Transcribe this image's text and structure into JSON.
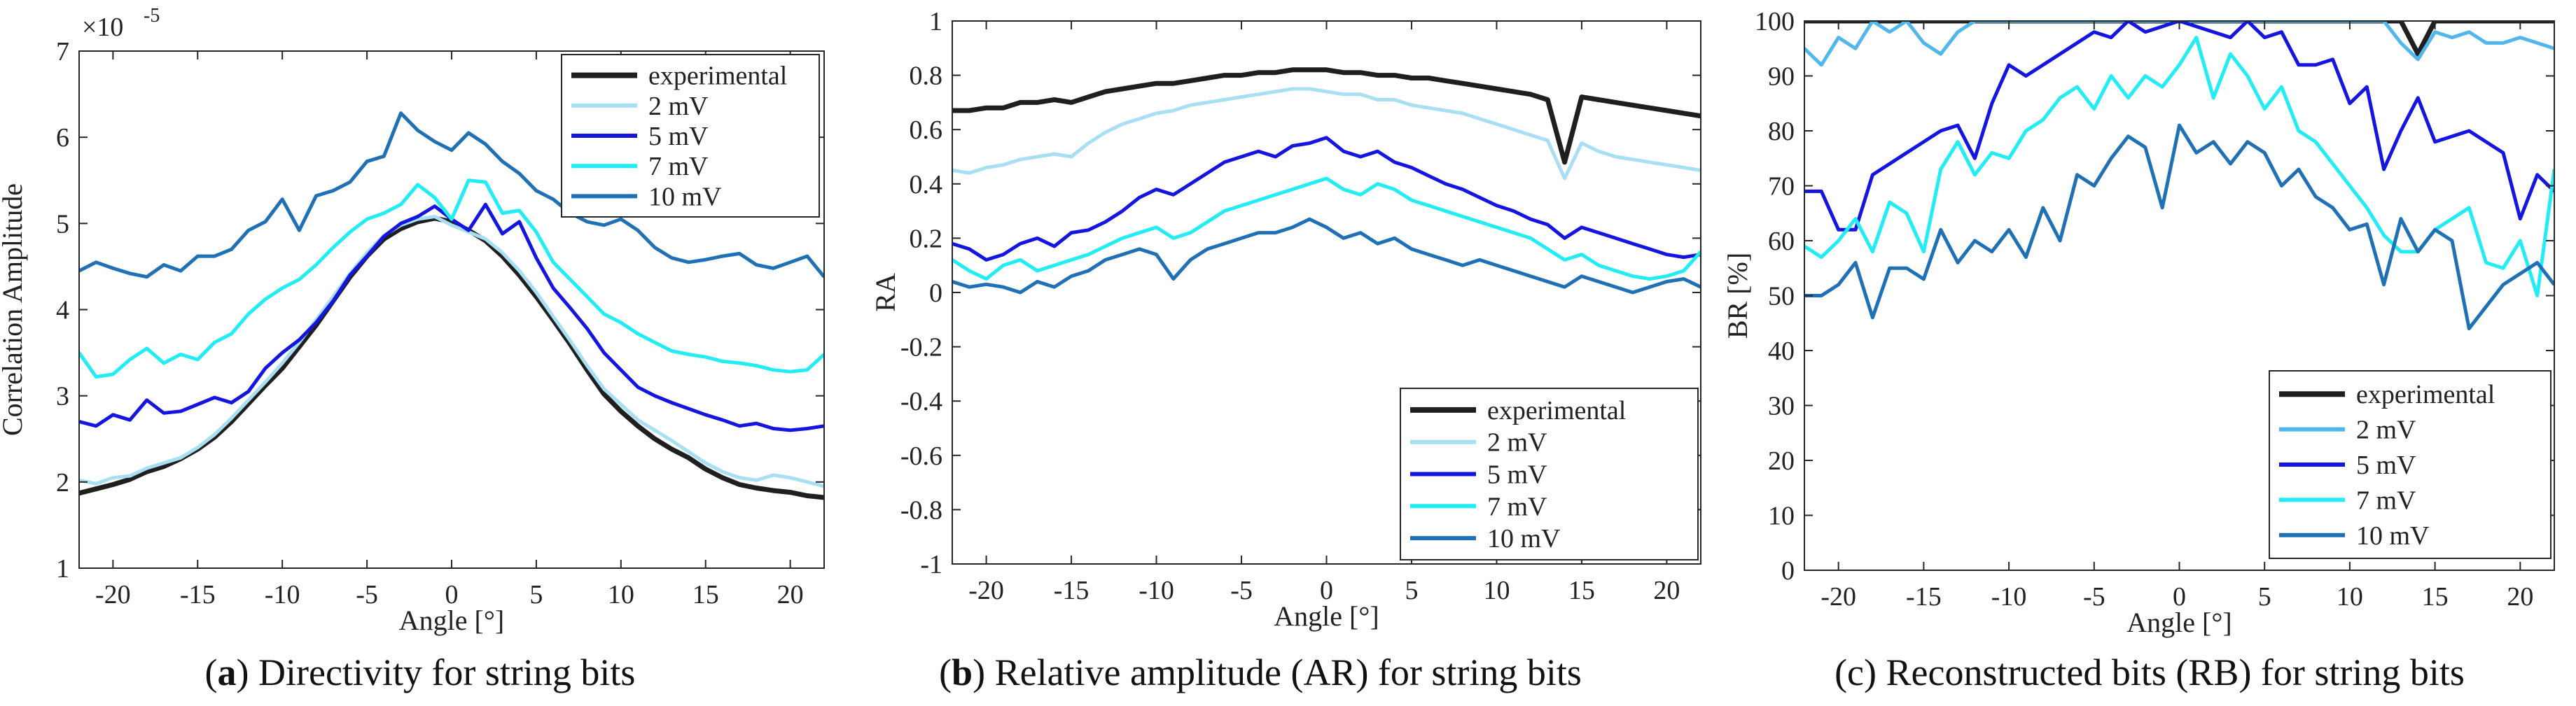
{
  "figure": {
    "captions": [
      {
        "letter": "a",
        "text": " Directivity for string bits",
        "paren_open": "(",
        "paren_close": ")"
      },
      {
        "letter": "b",
        "text": " Relative amplitude (AR) for string bits",
        "paren_open": "(",
        "paren_close": ")"
      },
      {
        "letter": "",
        "text": "(c) Reconstructed bits (RB) for string bits",
        "paren_open": "",
        "paren_close": ""
      }
    ]
  },
  "chart_data": [
    {
      "type": "line",
      "title": "",
      "xlabel": "Angle [°]",
      "ylabel": "Correlation Amplitude",
      "y_exponent_label": "×10",
      "y_exponent_power": "-5",
      "xlim": [
        -22,
        22
      ],
      "ylim": [
        1,
        7
      ],
      "xticks": [
        -20,
        -15,
        -10,
        -5,
        0,
        5,
        10,
        15,
        20
      ],
      "yticks": [
        1,
        2,
        3,
        4,
        5,
        6,
        7
      ],
      "legend_position": "top-right",
      "x": [
        -22,
        -21,
        -20,
        -19,
        -18,
        -17,
        -16,
        -15,
        -14,
        -13,
        -12,
        -11,
        -10,
        -9,
        -8,
        -7,
        -6,
        -5,
        -4,
        -3,
        -2,
        -1,
        0,
        1,
        2,
        3,
        4,
        5,
        6,
        7,
        8,
        9,
        10,
        11,
        12,
        13,
        14,
        15,
        16,
        17,
        18,
        19,
        20,
        21,
        22
      ],
      "series": [
        {
          "name": "experimental",
          "color": "#1f1f1f",
          "width": 7,
          "values": [
            1.87,
            1.92,
            1.97,
            2.03,
            2.12,
            2.18,
            2.27,
            2.38,
            2.52,
            2.7,
            2.91,
            3.12,
            3.32,
            3.57,
            3.82,
            4.1,
            4.38,
            4.62,
            4.82,
            4.94,
            5.02,
            5.06,
            5.02,
            4.92,
            4.8,
            4.62,
            4.4,
            4.15,
            3.88,
            3.6,
            3.3,
            3.02,
            2.82,
            2.65,
            2.5,
            2.38,
            2.28,
            2.15,
            2.05,
            1.97,
            1.93,
            1.9,
            1.88,
            1.84,
            1.82
          ]
        },
        {
          "name": "2  mV",
          "color": "#a8dff2",
          "width": 5,
          "values": [
            2.02,
            1.98,
            2.05,
            2.07,
            2.16,
            2.22,
            2.28,
            2.4,
            2.55,
            2.74,
            2.95,
            3.16,
            3.38,
            3.62,
            3.88,
            4.15,
            4.42,
            4.66,
            4.86,
            4.98,
            5.05,
            5.08,
            4.98,
            4.9,
            4.82,
            4.66,
            4.45,
            4.2,
            3.92,
            3.64,
            3.35,
            3.08,
            2.9,
            2.72,
            2.6,
            2.48,
            2.35,
            2.22,
            2.12,
            2.05,
            2.02,
            2.08,
            2.05,
            2.0,
            1.95
          ]
        },
        {
          "name": "5  mV",
          "color": "#1515e0",
          "width": 5,
          "values": [
            2.7,
            2.65,
            2.78,
            2.72,
            2.95,
            2.8,
            2.82,
            2.9,
            2.98,
            2.92,
            3.05,
            3.32,
            3.5,
            3.65,
            3.85,
            4.1,
            4.4,
            4.62,
            4.85,
            5.0,
            5.08,
            5.2,
            5.05,
            4.92,
            5.22,
            4.88,
            5.02,
            4.6,
            4.25,
            4.02,
            3.78,
            3.5,
            3.3,
            3.1,
            3.0,
            2.92,
            2.85,
            2.78,
            2.72,
            2.65,
            2.68,
            2.62,
            2.6,
            2.62,
            2.65
          ]
        },
        {
          "name": "7  mV",
          "color": "#22ecf4",
          "width": 5,
          "values": [
            3.5,
            3.22,
            3.25,
            3.42,
            3.55,
            3.38,
            3.48,
            3.42,
            3.62,
            3.72,
            3.95,
            4.12,
            4.25,
            4.35,
            4.52,
            4.72,
            4.9,
            5.05,
            5.12,
            5.22,
            5.45,
            5.3,
            5.05,
            5.5,
            5.48,
            5.12,
            5.15,
            4.9,
            4.55,
            4.35,
            4.15,
            3.95,
            3.85,
            3.72,
            3.62,
            3.52,
            3.48,
            3.45,
            3.4,
            3.38,
            3.35,
            3.3,
            3.28,
            3.3,
            3.48
          ]
        },
        {
          "name": "10 mV",
          "color": "#1f70b4",
          "width": 5,
          "values": [
            4.45,
            4.55,
            4.48,
            4.42,
            4.38,
            4.52,
            4.45,
            4.62,
            4.62,
            4.7,
            4.92,
            5.02,
            5.28,
            4.92,
            5.32,
            5.38,
            5.48,
            5.72,
            5.78,
            6.28,
            6.08,
            5.95,
            5.85,
            6.05,
            5.92,
            5.72,
            5.58,
            5.38,
            5.28,
            5.12,
            5.02,
            4.98,
            5.05,
            4.92,
            4.72,
            4.6,
            4.55,
            4.58,
            4.62,
            4.65,
            4.52,
            4.48,
            4.55,
            4.62,
            4.38
          ]
        }
      ]
    },
    {
      "type": "line",
      "title": "",
      "xlabel": "Angle [°]",
      "ylabel": "RA",
      "xlim": [
        -22,
        22
      ],
      "ylim": [
        -1,
        1
      ],
      "xticks": [
        -20,
        -15,
        -10,
        -5,
        0,
        5,
        10,
        15,
        20
      ],
      "yticks": [
        -1,
        -0.8,
        -0.6,
        -0.4,
        -0.2,
        0,
        0.2,
        0.4,
        0.6,
        0.8,
        1
      ],
      "ytick_labels": [
        "-1",
        "-0.8",
        "-0.6",
        "-0.4",
        "-0.2",
        "0",
        "0.2",
        "0.4",
        "0.6",
        "0.8",
        "1"
      ],
      "legend_position": "bottom-right",
      "x": [
        -22,
        -21,
        -20,
        -19,
        -18,
        -17,
        -16,
        -15,
        -14,
        -13,
        -12,
        -11,
        -10,
        -9,
        -8,
        -7,
        -6,
        -5,
        -4,
        -3,
        -2,
        -1,
        0,
        1,
        2,
        3,
        4,
        5,
        6,
        7,
        8,
        9,
        10,
        11,
        12,
        13,
        14,
        15,
        16,
        17,
        18,
        19,
        20,
        21,
        22
      ],
      "series": [
        {
          "name": "experimental",
          "color": "#1f1f1f",
          "width": 7,
          "values": [
            0.67,
            0.67,
            0.68,
            0.68,
            0.7,
            0.7,
            0.71,
            0.7,
            0.72,
            0.74,
            0.75,
            0.76,
            0.77,
            0.77,
            0.78,
            0.79,
            0.8,
            0.8,
            0.81,
            0.81,
            0.82,
            0.82,
            0.82,
            0.81,
            0.81,
            0.8,
            0.8,
            0.79,
            0.79,
            0.78,
            0.77,
            0.76,
            0.75,
            0.74,
            0.73,
            0.71,
            0.48,
            0.72,
            0.71,
            0.7,
            0.69,
            0.68,
            0.67,
            0.66,
            0.65
          ]
        },
        {
          "name": "2  mV",
          "color": "#a8dff2",
          "width": 5,
          "values": [
            0.45,
            0.44,
            0.46,
            0.47,
            0.49,
            0.5,
            0.51,
            0.5,
            0.55,
            0.59,
            0.62,
            0.64,
            0.66,
            0.67,
            0.69,
            0.7,
            0.71,
            0.72,
            0.73,
            0.74,
            0.75,
            0.75,
            0.74,
            0.73,
            0.73,
            0.71,
            0.71,
            0.69,
            0.68,
            0.67,
            0.66,
            0.64,
            0.62,
            0.6,
            0.58,
            0.56,
            0.42,
            0.55,
            0.52,
            0.5,
            0.49,
            0.48,
            0.47,
            0.46,
            0.45
          ]
        },
        {
          "name": "5  mV",
          "color": "#1515e0",
          "width": 5,
          "values": [
            0.18,
            0.16,
            0.12,
            0.14,
            0.18,
            0.2,
            0.17,
            0.22,
            0.23,
            0.26,
            0.3,
            0.35,
            0.38,
            0.36,
            0.4,
            0.44,
            0.48,
            0.5,
            0.52,
            0.5,
            0.54,
            0.55,
            0.57,
            0.52,
            0.5,
            0.52,
            0.48,
            0.46,
            0.43,
            0.4,
            0.38,
            0.35,
            0.32,
            0.3,
            0.27,
            0.25,
            0.2,
            0.24,
            0.22,
            0.2,
            0.18,
            0.16,
            0.14,
            0.13,
            0.14
          ]
        },
        {
          "name": "7  mV",
          "color": "#22ecf4",
          "width": 5,
          "values": [
            0.12,
            0.08,
            0.05,
            0.1,
            0.12,
            0.08,
            0.1,
            0.12,
            0.14,
            0.17,
            0.2,
            0.22,
            0.24,
            0.2,
            0.22,
            0.26,
            0.3,
            0.32,
            0.34,
            0.36,
            0.38,
            0.4,
            0.42,
            0.38,
            0.36,
            0.4,
            0.38,
            0.34,
            0.32,
            0.3,
            0.28,
            0.26,
            0.24,
            0.22,
            0.2,
            0.16,
            0.12,
            0.14,
            0.1,
            0.08,
            0.06,
            0.05,
            0.06,
            0.08,
            0.15
          ]
        },
        {
          "name": "10 mV",
          "color": "#1f70b4",
          "width": 5,
          "values": [
            0.04,
            0.02,
            0.03,
            0.02,
            0.0,
            0.04,
            0.02,
            0.06,
            0.08,
            0.12,
            0.14,
            0.16,
            0.14,
            0.05,
            0.12,
            0.16,
            0.18,
            0.2,
            0.22,
            0.22,
            0.24,
            0.27,
            0.24,
            0.2,
            0.22,
            0.18,
            0.2,
            0.16,
            0.14,
            0.12,
            0.1,
            0.12,
            0.1,
            0.08,
            0.06,
            0.04,
            0.02,
            0.06,
            0.04,
            0.02,
            0.0,
            0.02,
            0.04,
            0.05,
            0.02
          ]
        }
      ]
    },
    {
      "type": "line",
      "title": "",
      "xlabel": "Angle [°]",
      "ylabel": "BR [%]",
      "xlim": [
        -22,
        22
      ],
      "ylim": [
        0,
        100
      ],
      "xticks": [
        -20,
        -15,
        -10,
        -5,
        0,
        5,
        10,
        15,
        20
      ],
      "yticks": [
        0,
        10,
        20,
        30,
        40,
        50,
        60,
        70,
        80,
        90,
        100
      ],
      "legend_position": "bottom-right",
      "x": [
        -22,
        -21,
        -20,
        -19,
        -18,
        -17,
        -16,
        -15,
        -14,
        -13,
        -12,
        -11,
        -10,
        -9,
        -8,
        -7,
        -6,
        -5,
        -4,
        -3,
        -2,
        -1,
        0,
        1,
        2,
        3,
        4,
        5,
        6,
        7,
        8,
        9,
        10,
        11,
        12,
        13,
        14,
        15,
        16,
        17,
        18,
        19,
        20,
        21,
        22
      ],
      "series": [
        {
          "name": "experimental",
          "color": "#1f1f1f",
          "width": 7,
          "values": [
            100,
            100,
            100,
            100,
            100,
            100,
            100,
            100,
            100,
            100,
            100,
            100,
            100,
            100,
            100,
            100,
            100,
            100,
            100,
            100,
            100,
            100,
            100,
            100,
            100,
            100,
            100,
            100,
            100,
            100,
            100,
            100,
            100,
            100,
            100,
            100,
            94,
            100,
            100,
            100,
            100,
            100,
            100,
            100,
            100
          ]
        },
        {
          "name": "2  mV",
          "color": "#4fb7ec",
          "width": 5,
          "values": [
            95,
            92,
            97,
            95,
            100,
            98,
            100,
            96,
            94,
            98,
            100,
            100,
            100,
            100,
            100,
            100,
            100,
            100,
            100,
            100,
            100,
            100,
            100,
            100,
            100,
            100,
            100,
            100,
            100,
            100,
            100,
            100,
            100,
            100,
            100,
            96,
            93,
            98,
            97,
            98,
            96,
            96,
            97,
            96,
            95
          ]
        },
        {
          "name": "5  mV",
          "color": "#1515e0",
          "width": 5,
          "values": [
            69,
            69,
            62,
            62,
            72,
            74,
            76,
            78,
            80,
            81,
            75,
            85,
            92,
            90,
            92,
            94,
            96,
            98,
            97,
            100,
            98,
            99,
            100,
            99,
            98,
            97,
            100,
            97,
            98,
            92,
            92,
            93,
            85,
            88,
            73,
            80,
            86,
            78,
            79,
            80,
            78,
            76,
            64,
            72,
            69
          ]
        },
        {
          "name": "7  mV",
          "color": "#22ecf4",
          "width": 5,
          "values": [
            59,
            57,
            60,
            64,
            58,
            67,
            65,
            58,
            73,
            78,
            72,
            76,
            75,
            80,
            82,
            86,
            88,
            84,
            90,
            86,
            90,
            88,
            92,
            97,
            86,
            94,
            90,
            84,
            88,
            80,
            78,
            74,
            70,
            66,
            61,
            58,
            58,
            62,
            64,
            66,
            56,
            55,
            60,
            50,
            73
          ]
        },
        {
          "name": "10 mV",
          "color": "#1f70b4",
          "width": 5,
          "values": [
            50,
            50,
            52,
            56,
            46,
            55,
            55,
            53,
            62,
            56,
            60,
            58,
            62,
            57,
            66,
            60,
            72,
            70,
            75,
            79,
            77,
            66,
            81,
            76,
            78,
            74,
            78,
            76,
            70,
            73,
            68,
            66,
            62,
            63,
            52,
            64,
            58,
            62,
            60,
            44,
            48,
            52,
            54,
            56,
            52
          ]
        }
      ]
    }
  ]
}
